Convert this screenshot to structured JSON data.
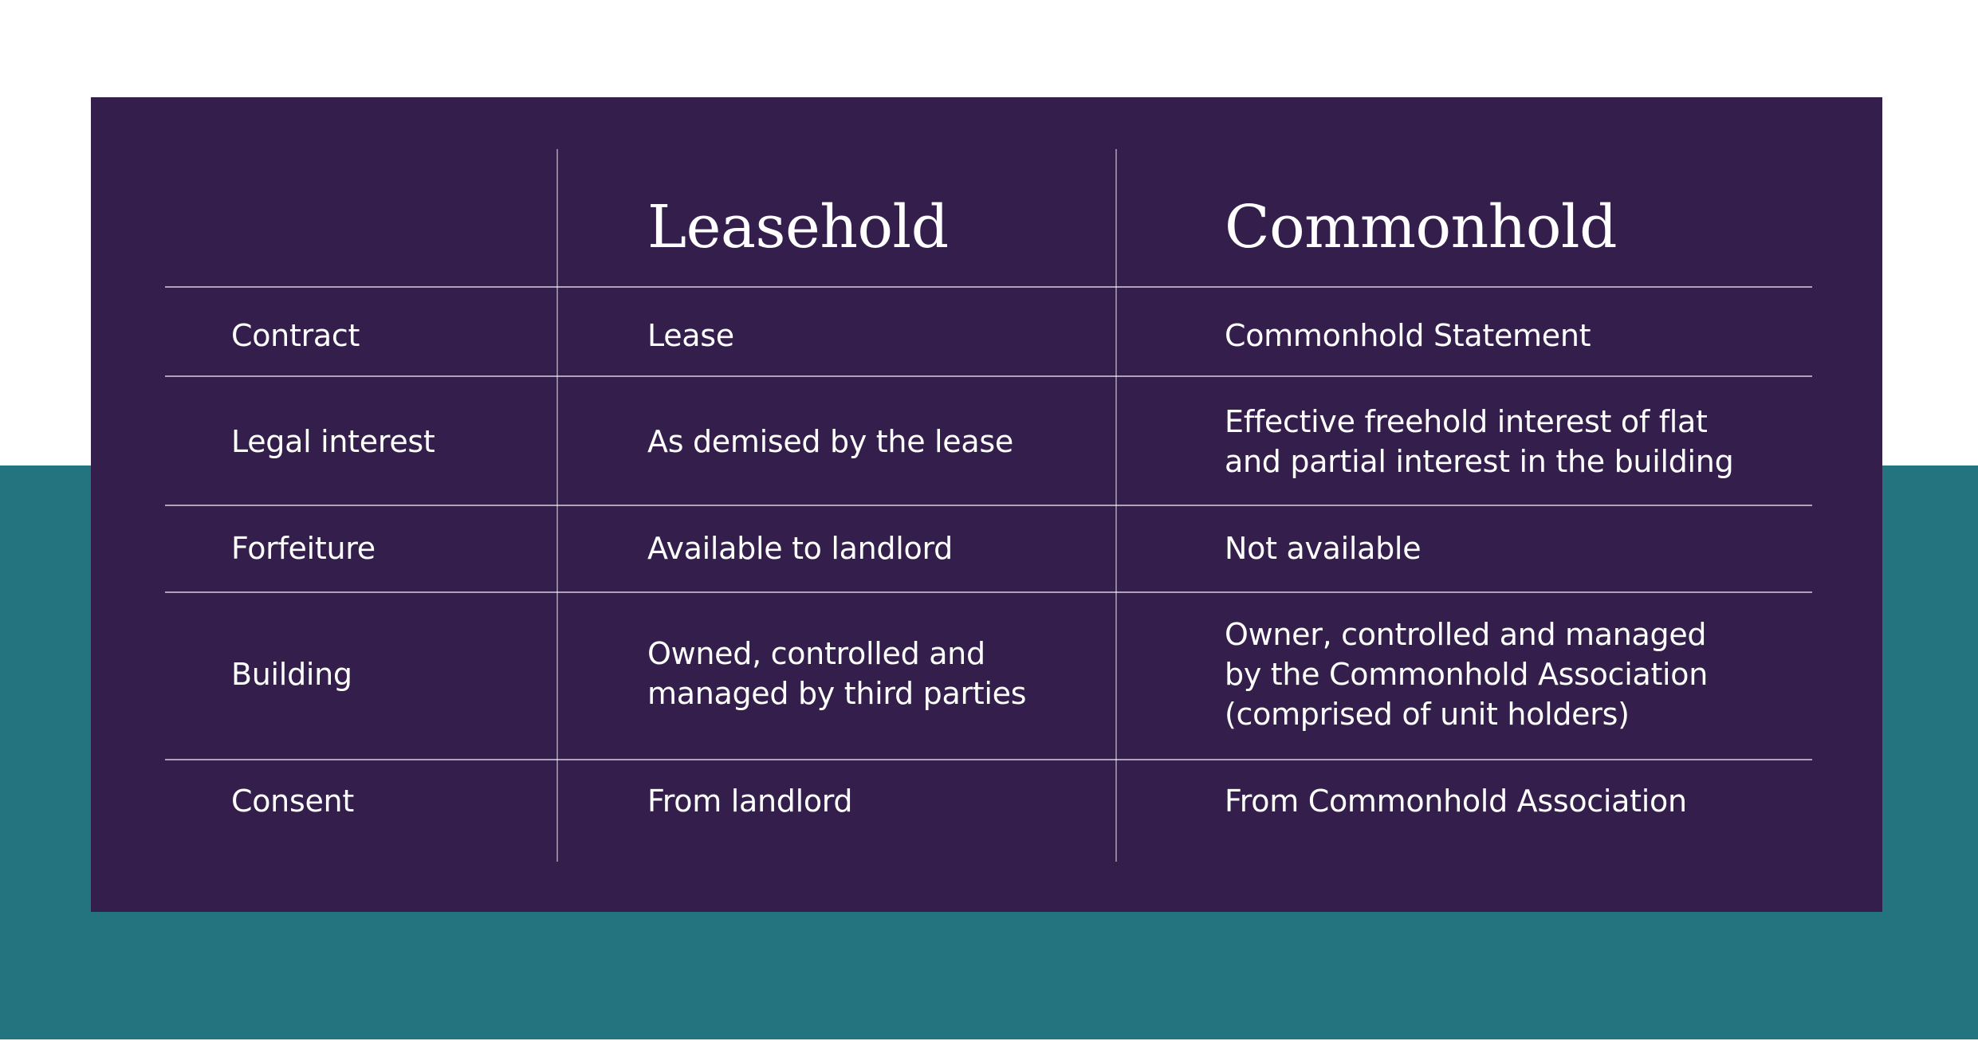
{
  "colors": {
    "background_top": "#ffffff",
    "background_band": "#23747e",
    "panel": "#341e4c",
    "text": "#ffffff"
  },
  "table": {
    "columns": [
      "",
      "Leasehold",
      "Commonhold"
    ],
    "rows": [
      {
        "label": "Contract",
        "leasehold": "Lease",
        "commonhold": "Commonhold Statement"
      },
      {
        "label": "Legal interest",
        "leasehold": "As demised by the lease",
        "commonhold": "Effective freehold interest of flat\nand partial interest in the building"
      },
      {
        "label": "Forfeiture",
        "leasehold": "Available to landlord",
        "commonhold": "Not available"
      },
      {
        "label": "Building",
        "leasehold": "Owned, controlled and\nmanaged by third parties",
        "commonhold": "Owner, controlled and managed\nby the Commonhold Association\n(comprised of unit holders)"
      },
      {
        "label": "Consent",
        "leasehold": "From landlord",
        "commonhold": "From Commonhold Association"
      }
    ]
  }
}
